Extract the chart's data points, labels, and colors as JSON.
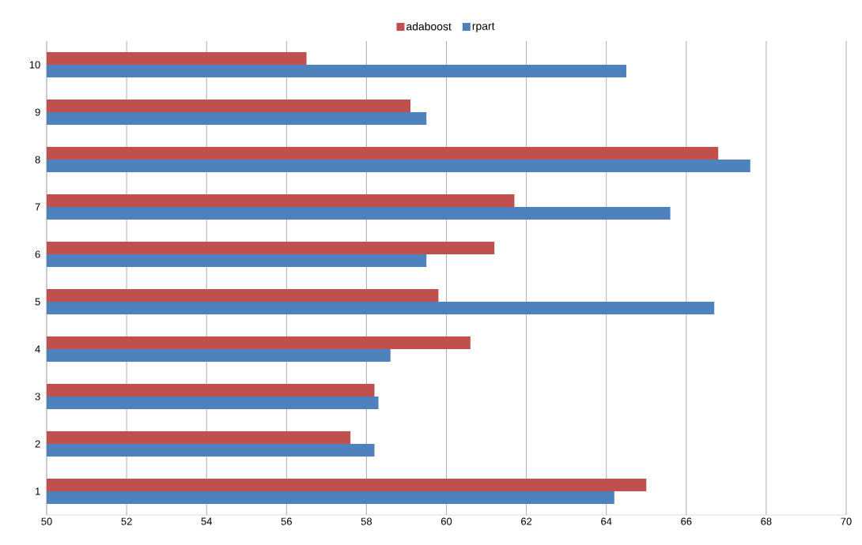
{
  "chart_data": {
    "type": "bar",
    "orientation": "horizontal",
    "categories": [
      "10",
      "9",
      "8",
      "7",
      "6",
      "5",
      "4",
      "3",
      "2",
      "1"
    ],
    "series": [
      {
        "name": "adaboost",
        "color": "#c0504d",
        "values": [
          56.5,
          59.1,
          66.8,
          61.7,
          61.2,
          59.8,
          60.6,
          58.2,
          57.6,
          65.0
        ]
      },
      {
        "name": "rpart",
        "color": "#4f81bd",
        "values": [
          64.5,
          59.5,
          67.6,
          65.6,
          59.5,
          66.7,
          58.6,
          58.3,
          58.2,
          64.2
        ]
      }
    ],
    "xlim": [
      50,
      70
    ],
    "xticks": [
      50,
      52,
      54,
      56,
      58,
      60,
      62,
      64,
      66,
      68,
      70
    ],
    "grid": "x",
    "legend": "top"
  }
}
